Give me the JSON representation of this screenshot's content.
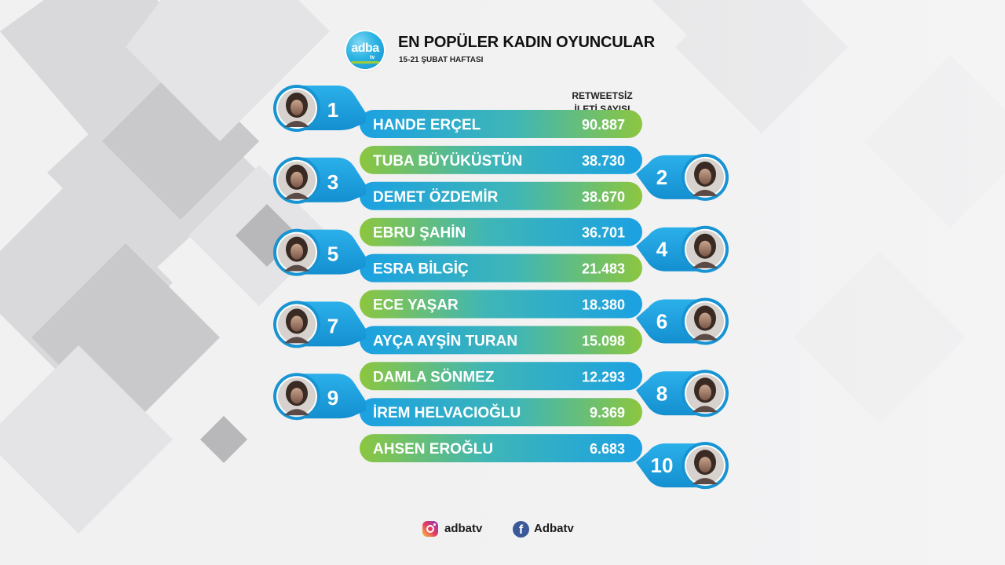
{
  "header": {
    "logo_text": "adba",
    "logo_sub": "tv",
    "title": "EN POPÜLER KADIN OYUNCULAR",
    "subtitle": "15-21 ŞUBAT HAFTASI",
    "column_header_line1": "RETWEETSİZ",
    "column_header_line2": "İLETİ SAYISI"
  },
  "chart_data": {
    "type": "table",
    "title": "EN POPÜLER KADIN OYUNCULAR",
    "subtitle": "15-21 ŞUBAT HAFTASI",
    "value_header": "RETWEETSİZ İLETİ SAYISI",
    "rows": [
      {
        "rank": "1",
        "name": "HANDE ERÇEL",
        "value": 90887,
        "value_label": "90.887",
        "photo_side": "left"
      },
      {
        "rank": "2",
        "name": "TUBA BÜYÜKÜSTÜN",
        "value": 38730,
        "value_label": "38.730",
        "photo_side": "right"
      },
      {
        "rank": "3",
        "name": "DEMET ÖZDEMİR",
        "value": 38670,
        "value_label": "38.670",
        "photo_side": "left"
      },
      {
        "rank": "4",
        "name": "EBRU ŞAHİN",
        "value": 36701,
        "value_label": "36.701",
        "photo_side": "right"
      },
      {
        "rank": "5",
        "name": "ESRA BİLGİÇ",
        "value": 21483,
        "value_label": "21.483",
        "photo_side": "left"
      },
      {
        "rank": "6",
        "name": "ECE YAŞAR",
        "value": 18380,
        "value_label": "18.380",
        "photo_side": "right"
      },
      {
        "rank": "7",
        "name": "AYÇA AYŞİN TURAN",
        "value": 15098,
        "value_label": "15.098",
        "photo_side": "left"
      },
      {
        "rank": "8",
        "name": "DAMLA SÖNMEZ",
        "value": 12293,
        "value_label": "12.293",
        "photo_side": "right"
      },
      {
        "rank": "9",
        "name": "İREM HELVACIOĞLU",
        "value": 9369,
        "value_label": "9.369",
        "photo_side": "left"
      },
      {
        "rank": "10",
        "name": "AHSEN EROĞLU",
        "value": 6683,
        "value_label": "6.683",
        "photo_side": "right"
      }
    ]
  },
  "footer": {
    "instagram_icon": "instagram-icon",
    "instagram_handle": "adbatv",
    "facebook_icon": "facebook-icon",
    "facebook_handle": "Adbatv"
  },
  "colors": {
    "blue": "#1aa3e0",
    "green": "#8cc63f",
    "white_badge": "#ffffff"
  }
}
